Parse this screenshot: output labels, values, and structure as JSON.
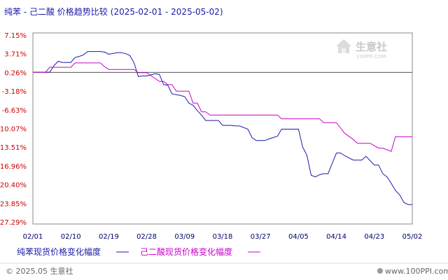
{
  "chart_data": {
    "type": "line",
    "title": "纯苯 - 己二酸 价格趋势比较",
    "date_range": "(2025-02-01 - 2025-05-02)",
    "x_tick_labels": [
      "02/01",
      "02/10",
      "02/19",
      "02/28",
      "03/09",
      "03/18",
      "03/27",
      "04/05",
      "04/14",
      "04/23",
      "05/02"
    ],
    "y_tick_labels": [
      "7.15%",
      "3.71%",
      "0.26%",
      "-3.18%",
      "-6.63%",
      "-10.07%",
      "-13.51%",
      "-16.96%",
      "-20.40%",
      "-23.85%",
      "-27.29%"
    ],
    "y_ticks": [
      7.15,
      3.71,
      0.26,
      -3.18,
      -6.63,
      -10.07,
      -13.51,
      -16.96,
      -20.4,
      -23.85,
      -27.29
    ],
    "ylim": [
      -27.29,
      7.15
    ],
    "x_range": [
      "2025-02-01",
      "2025-05-02"
    ],
    "grid": false,
    "legend_position": "bottom",
    "series": [
      {
        "name": "纯苯现货价格变化幅度",
        "color": "#1a1aa8",
        "x": [
          "2025-02-01",
          "2025-02-03",
          "2025-02-05",
          "2025-02-06",
          "2025-02-07",
          "2025-02-08",
          "2025-02-10",
          "2025-02-11",
          "2025-02-12",
          "2025-02-13",
          "2025-02-14",
          "2025-02-15",
          "2025-02-17",
          "2025-02-18",
          "2025-02-19",
          "2025-02-21",
          "2025-02-22",
          "2025-02-23",
          "2025-02-24",
          "2025-02-25",
          "2025-02-26",
          "2025-02-27",
          "2025-02-28",
          "2025-03-01",
          "2025-03-02",
          "2025-03-03",
          "2025-03-04",
          "2025-03-05",
          "2025-03-06",
          "2025-03-08",
          "2025-03-09",
          "2025-03-10",
          "2025-03-11",
          "2025-03-12",
          "2025-03-13",
          "2025-03-14",
          "2025-03-15",
          "2025-03-17",
          "2025-03-18",
          "2025-03-19",
          "2025-03-20",
          "2025-03-21",
          "2025-03-22",
          "2025-03-24",
          "2025-03-25",
          "2025-03-26",
          "2025-03-27",
          "2025-03-28",
          "2025-03-29",
          "2025-03-31",
          "2025-04-01",
          "2025-04-02",
          "2025-04-03",
          "2025-04-05",
          "2025-04-06",
          "2025-04-07",
          "2025-04-08",
          "2025-04-09",
          "2025-04-10",
          "2025-04-11",
          "2025-04-12",
          "2025-04-14",
          "2025-04-15",
          "2025-04-16",
          "2025-04-18",
          "2025-04-19",
          "2025-04-20",
          "2025-04-21",
          "2025-04-22",
          "2025-04-23",
          "2025-04-24",
          "2025-04-25",
          "2025-04-26",
          "2025-04-27",
          "2025-04-28",
          "2025-04-29",
          "2025-04-30",
          "2025-05-01",
          "2025-05-02"
        ],
        "values": [
          0.3,
          0.3,
          0.3,
          1.5,
          2.3,
          2.1,
          2.1,
          3.0,
          3.2,
          3.5,
          4.1,
          4.1,
          4.1,
          4.0,
          3.6,
          3.9,
          3.9,
          3.7,
          3.4,
          2.0,
          -0.5,
          -0.4,
          -0.4,
          -0.2,
          0.0,
          -0.1,
          -2.0,
          -2.1,
          -3.7,
          -4.0,
          -4.2,
          -5.4,
          -5.8,
          -6.8,
          -7.6,
          -8.6,
          -8.6,
          -8.6,
          -9.5,
          -9.5,
          -9.5,
          -9.6,
          -9.6,
          -10.2,
          -11.8,
          -12.3,
          -12.3,
          -12.3,
          -12.0,
          -11.5,
          -10.2,
          -10.2,
          -10.2,
          -10.2,
          -13.5,
          -15.0,
          -18.7,
          -19.0,
          -18.6,
          -18.4,
          -18.4,
          -14.6,
          -14.6,
          -15.1,
          -15.9,
          -15.9,
          -15.9,
          -15.2,
          -16.0,
          -16.8,
          -16.8,
          -18.4,
          -19.0,
          -20.2,
          -21.5,
          -22.3,
          -23.7,
          -24.1,
          -24.1
        ]
      },
      {
        "name": "己二酸现货价格变化幅度",
        "color": "#cc00cc",
        "x": [
          "2025-02-01",
          "2025-02-04",
          "2025-02-05",
          "2025-02-10",
          "2025-02-11",
          "2025-02-17",
          "2025-02-18",
          "2025-02-19",
          "2025-02-25",
          "2025-02-26",
          "2025-02-28",
          "2025-03-03",
          "2025-03-04",
          "2025-03-05",
          "2025-03-06",
          "2025-03-07",
          "2025-03-10",
          "2025-03-11",
          "2025-03-12",
          "2025-03-13",
          "2025-03-14",
          "2025-03-15",
          "2025-03-17",
          "2025-03-18",
          "2025-03-31",
          "2025-04-01",
          "2025-04-10",
          "2025-04-11",
          "2025-04-14",
          "2025-04-15",
          "2025-04-16",
          "2025-04-18",
          "2025-04-19",
          "2025-04-21",
          "2025-04-22",
          "2025-04-24",
          "2025-04-25",
          "2025-04-27",
          "2025-04-28",
          "2025-05-02"
        ],
        "values": [
          0.3,
          0.3,
          1.2,
          1.2,
          2.0,
          2.0,
          1.3,
          0.8,
          0.8,
          0.2,
          0.2,
          -1.4,
          -1.4,
          -2.0,
          -2.0,
          -3.2,
          -3.2,
          -5.4,
          -5.4,
          -7.0,
          -7.0,
          -7.6,
          -7.6,
          -7.6,
          -7.6,
          -8.3,
          -8.3,
          -9.0,
          -9.0,
          -10.0,
          -11.0,
          -12.1,
          -12.8,
          -12.8,
          -12.8,
          -13.7,
          -13.7,
          -14.3,
          -11.6,
          -11.6
        ]
      }
    ]
  },
  "legend": [
    {
      "label": "纯苯现货价格变化幅度",
      "color": "#1a1aa8"
    },
    {
      "label": "己二酸现货价格变化幅度",
      "color": "#cc00cc"
    }
  ],
  "footer": {
    "copyright": "© 2025.05 生意社",
    "website": "www.100PPI.com"
  },
  "watermark": {
    "name": "生意社",
    "sub": "100PPI.COM"
  }
}
